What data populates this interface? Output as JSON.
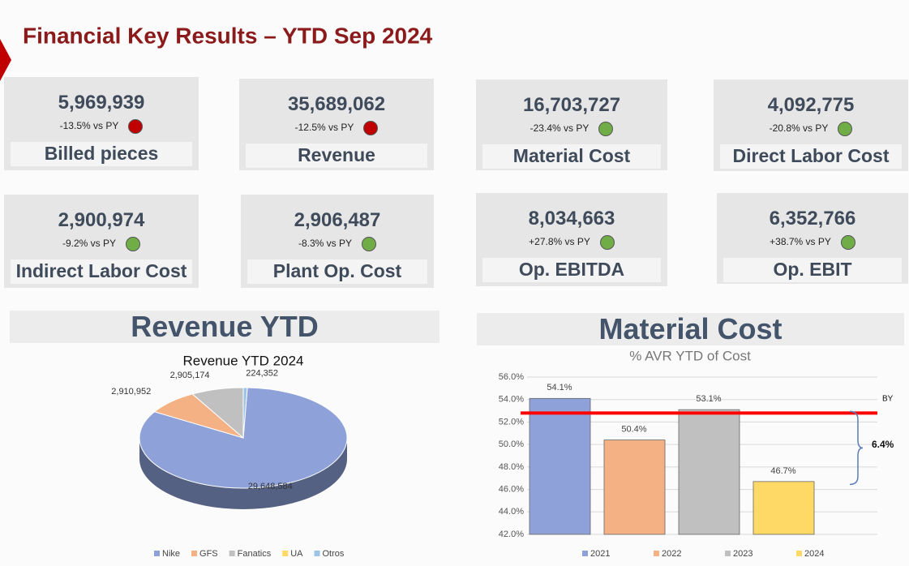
{
  "header": {
    "title": "Financial Key Results – YTD Sep 2024"
  },
  "kpis": [
    {
      "value": "5,969,939",
      "delta": "-13.5% vs PY",
      "label": "Billed pieces",
      "indicator": "#c00000"
    },
    {
      "value": "35,689,062",
      "delta": "-12.5% vs PY",
      "label": "Revenue",
      "indicator": "#c00000"
    },
    {
      "value": "16,703,727",
      "delta": "-23.4% vs PY",
      "label": "Material Cost",
      "indicator": "#70ad47"
    },
    {
      "value": "4,092,775",
      "delta": "-20.8% vs PY",
      "label": "Direct Labor Cost",
      "indicator": "#70ad47"
    },
    {
      "value": "2,900,974",
      "delta": "-9.2% vs PY",
      "label": "Indirect Labor Cost",
      "indicator": "#70ad47"
    },
    {
      "value": "2,906,487",
      "delta": "-8.3% vs PY",
      "label": "Plant Op. Cost",
      "indicator": "#70ad47"
    },
    {
      "value": "8,034,663",
      "delta": "+27.8% vs PY",
      "label": "Op. EBITDA",
      "indicator": "#70ad47"
    },
    {
      "value": "6,352,766",
      "delta": "+38.7% vs PY",
      "label": "Op. EBIT",
      "indicator": "#70ad47"
    }
  ],
  "sections": [
    "Revenue YTD",
    "Material Cost"
  ],
  "chart_data": [
    {
      "type": "pie",
      "title": "Revenue YTD 2024",
      "categories": [
        "Nike",
        "GFS",
        "Fanatics",
        "UA",
        "Otros"
      ],
      "values": [
        29648584,
        2910952,
        2905174,
        0,
        224352
      ],
      "value_labels": [
        "29,648,584",
        "2,910,952",
        "2,905,174",
        null,
        "224,352"
      ],
      "colors": [
        "#8ea2d9",
        "#f4b183",
        "#c0c0c0",
        "#ffd966",
        "#9dc3e6"
      ]
    },
    {
      "type": "bar",
      "title": "% AVR YTD of Cost",
      "categories": [
        "2021",
        "2022",
        "2023",
        "2024"
      ],
      "values": [
        54.1,
        50.4,
        53.1,
        46.7
      ],
      "value_labels": [
        "54.1%",
        "50.4%",
        "53.1%",
        "46.7%"
      ],
      "colors": [
        "#8ea2d9",
        "#f4b183",
        "#c0c0c0",
        "#ffd966"
      ],
      "ylim": [
        42,
        56
      ],
      "yticks": [
        {
          "value": 42,
          "label": "42.0%"
        },
        {
          "value": 44,
          "label": "44.0%"
        },
        {
          "value": 46,
          "label": "46.0%"
        },
        {
          "value": 48,
          "label": "48.0%"
        },
        {
          "value": 50,
          "label": "50.0%"
        },
        {
          "value": 52,
          "label": "52.0%"
        },
        {
          "value": 54,
          "label": "54.0%"
        },
        {
          "value": 56,
          "label": "56.0%"
        }
      ],
      "grid": true,
      "reference_line": {
        "label": "BY",
        "value": 52.8,
        "color": "#ff0000"
      },
      "annotation": "6.4%"
    }
  ]
}
